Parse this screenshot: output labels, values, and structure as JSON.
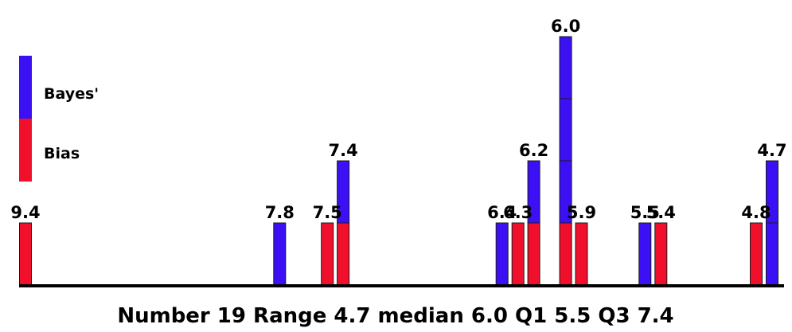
{
  "chart_data": {
    "type": "bar",
    "title": "",
    "caption": "Number 19 Range 4.7 median 6.0 Q1 5.5 Q3 7.4",
    "units": "count per value (stacked unit blocks)",
    "colors": {
      "bayes": "#3b10f5",
      "bias": "#f0102b",
      "axis": "#000000"
    },
    "legend": {
      "placement": "left",
      "entries": [
        {
          "name": "Bayes'",
          "key": "bayes",
          "color": "#3b10f5"
        },
        {
          "name": "Bias",
          "key": "bias",
          "color": "#f0102b"
        }
      ]
    },
    "x_range": [
      4.7,
      9.4
    ],
    "x_reversed": true,
    "points": [
      {
        "x": 9.4,
        "label": "9.4",
        "stack": [
          "bias"
        ]
      },
      {
        "x": 7.8,
        "label": "7.8",
        "stack": [
          "bayes"
        ]
      },
      {
        "x": 7.5,
        "label": "7.5",
        "stack": [
          "bias"
        ]
      },
      {
        "x": 7.4,
        "label": "7.4",
        "stack": [
          "bias",
          "bayes"
        ]
      },
      {
        "x": 6.4,
        "label": "6.4",
        "stack": [
          "bayes"
        ]
      },
      {
        "x": 6.3,
        "label": "6.3",
        "stack": [
          "bias"
        ]
      },
      {
        "x": 6.2,
        "label": "6.2",
        "stack": [
          "bias",
          "bayes"
        ]
      },
      {
        "x": 6.0,
        "label": "6.0",
        "stack": [
          "bias",
          "bayes",
          "bayes",
          "bayes"
        ]
      },
      {
        "x": 5.9,
        "label": "5.9",
        "stack": [
          "bias"
        ]
      },
      {
        "x": 5.5,
        "label": "5.5",
        "stack": [
          "bayes"
        ]
      },
      {
        "x": 5.4,
        "label": "5.4",
        "stack": [
          "bias"
        ]
      },
      {
        "x": 4.8,
        "label": "4.8",
        "stack": [
          "bias"
        ]
      },
      {
        "x": 4.7,
        "label": "4.7",
        "stack": [
          "bayes",
          "bayes"
        ]
      }
    ]
  }
}
